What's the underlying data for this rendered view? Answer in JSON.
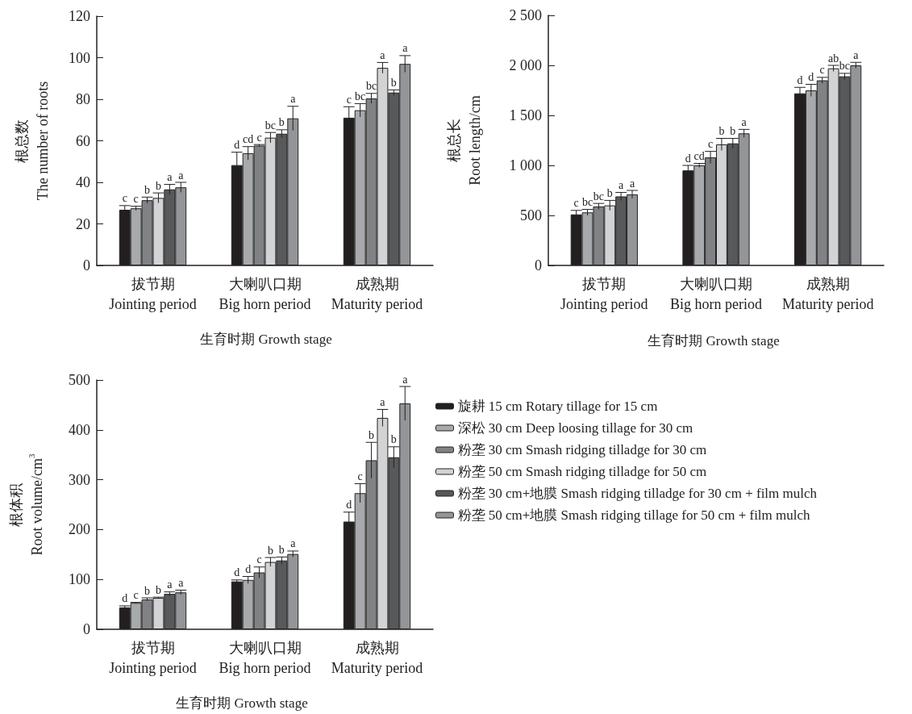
{
  "chart_data": [
    {
      "type": "bar",
      "categories": [
        "拔节期\nJointing period",
        "大喇叭口期\nBig horn period",
        "成熟期\nMaturity period"
      ],
      "ylabel": "根总数\nThe number of roots",
      "xlabel": "生育时期 Growth stage",
      "ylim": [
        0,
        120
      ],
      "yticks": [
        0,
        20,
        40,
        60,
        80,
        100,
        120
      ],
      "series": [
        {
          "color": "#231f20",
          "values": [
            26.8,
            48.3,
            71.1
          ],
          "errors": [
            2,
            6.2,
            5.3
          ],
          "value_labels": [
            "c",
            "d",
            "c"
          ]
        },
        {
          "color": "#a7a9ac",
          "values": [
            27.5,
            54,
            74.7
          ],
          "errors": [
            1,
            3.2,
            3.2
          ],
          "value_labels": [
            "c",
            "cd",
            "bc"
          ]
        },
        {
          "color": "#808285",
          "values": [
            31.4,
            57.7,
            80.4
          ],
          "errors": [
            1.5,
            0.5,
            2.4
          ],
          "value_labels": [
            "b",
            "c",
            "bc"
          ]
        },
        {
          "color": "#d1d3d4",
          "values": [
            32.5,
            61.5,
            95.1
          ],
          "errors": [
            2.4,
            2.5,
            2.6
          ],
          "value_labels": [
            "b",
            "bc",
            "a"
          ]
        },
        {
          "color": "#58595b",
          "values": [
            36.6,
            63.4,
            83.2
          ],
          "errors": [
            2.4,
            1.9,
            1.3
          ],
          "value_labels": [
            "a",
            "b",
            "b"
          ]
        },
        {
          "color": "#939598",
          "values": [
            37.6,
            70.8,
            97
          ],
          "errors": [
            2.4,
            5.8,
            4
          ],
          "value_labels": [
            "a",
            "a",
            "a"
          ]
        }
      ]
    },
    {
      "type": "bar",
      "categories": [
        "拔节期\nJointing period",
        "大喇叭口期\nBig horn period",
        "成熟期\nMaturity period"
      ],
      "ylabel": "根总长\nRoot length/cm",
      "xlabel": "生育时期 Growth stage",
      "ylim": [
        0,
        2500
      ],
      "yticks": [
        0,
        500,
        {
          "value": 1000,
          "label": "1 000"
        },
        {
          "value": 1500,
          "label": "1 500"
        },
        {
          "value": 2000,
          "label": "2 000"
        },
        {
          "value": 2500,
          "label": "2 500"
        }
      ],
      "series": [
        {
          "color": "#231f20",
          "values": [
            510,
            950,
            1720
          ],
          "errors": [
            40,
            50,
            60
          ],
          "value_labels": [
            "c",
            "d",
            "d"
          ]
        },
        {
          "color": "#a7a9ac",
          "values": [
            530,
            1000,
            1750
          ],
          "errors": [
            30,
            20,
            60
          ],
          "value_labels": [
            "bc",
            "cd",
            "d"
          ]
        },
        {
          "color": "#808285",
          "values": [
            590,
            1080,
            1850
          ],
          "errors": [
            30,
            60,
            30
          ],
          "value_labels": [
            "bc",
            "c",
            "c"
          ]
        },
        {
          "color": "#d1d3d4",
          "values": [
            600,
            1210,
            1970
          ],
          "errors": [
            50,
            60,
            30
          ],
          "value_labels": [
            "b",
            "b",
            "ab"
          ]
        },
        {
          "color": "#58595b",
          "values": [
            690,
            1220,
            1890
          ],
          "errors": [
            40,
            50,
            30
          ],
          "value_labels": [
            "a",
            "b",
            "bc"
          ]
        },
        {
          "color": "#939598",
          "values": [
            710,
            1320,
            2000
          ],
          "errors": [
            40,
            40,
            30
          ],
          "value_labels": [
            "a",
            "a",
            "a"
          ]
        }
      ]
    },
    {
      "type": "bar",
      "categories": [
        "拔节期\nJointing period",
        "大喇叭口期\nBig horn period",
        "成熟期\nMaturity period"
      ],
      "ylabel": "根体积\nRoot volume/cm$^{3}$",
      "xlabel": "生育时期 Growth stage",
      "ylim": [
        0,
        500
      ],
      "yticks": [
        0,
        100,
        200,
        300,
        400,
        500
      ],
      "legend": "right",
      "series": [
        {
          "name": "旋耕 15 cm Rotary tillage for 15 cm",
          "color": "#231f20",
          "values": [
            44,
            96,
            216
          ],
          "errors": [
            3,
            3,
            19
          ],
          "value_labels": [
            "d",
            "d",
            "d"
          ]
        },
        {
          "name": "深松 30 cm Deep loosing tillage for 30 cm",
          "color": "#a7a9ac",
          "values": [
            53,
            99,
            273
          ],
          "errors": [
            1,
            7,
            19
          ],
          "value_labels": [
            "c",
            "d",
            "c"
          ]
        },
        {
          "name": "粉垄 30 cm Smash ridging tilladge for 30 cm",
          "color": "#808285",
          "values": [
            60,
            114,
            339
          ],
          "errors": [
            3,
            11,
            36
          ],
          "value_labels": [
            "b",
            "c",
            "b"
          ]
        },
        {
          "name": "粉垄 50 cm Smash ridging tilladge for 50 cm",
          "color": "#d1d3d4",
          "values": [
            63,
            135,
            424
          ],
          "errors": [
            1.5,
            9,
            17
          ],
          "value_labels": [
            "b",
            "b",
            "a"
          ]
        },
        {
          "name": "粉垄 30 cm+地膜 Smash ridging tilladge for 30 cm + film mulch",
          "color": "#58595b",
          "values": [
            71,
            138,
            345
          ],
          "errors": [
            4,
            7,
            21
          ],
          "value_labels": [
            "a",
            "b",
            "b"
          ]
        },
        {
          "name": "粉垄 50 cm+地膜 Smash ridging tillage for 50 cm + film mulch",
          "color": "#939598",
          "values": [
            74,
            151,
            453
          ],
          "errors": [
            4.5,
            6,
            34
          ],
          "value_labels": [
            "a",
            "a",
            "a"
          ]
        }
      ]
    }
  ]
}
